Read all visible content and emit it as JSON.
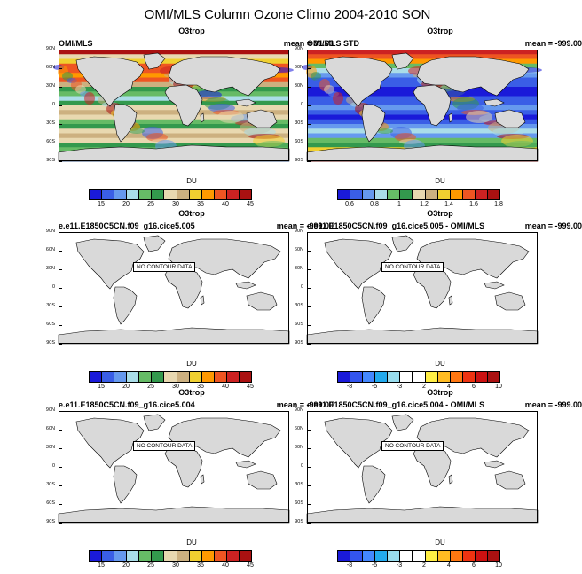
{
  "title": "OMI/MLS Column Ozone Climo 2004-2010 SON",
  "lat_labels": [
    "90N",
    "60N",
    "30N",
    "0",
    "30S",
    "60S",
    "90S"
  ],
  "colorbar_unit": "DU",
  "no_contour_text": "NO CONTOUR DATA",
  "colormaps": {
    "ozone": [
      "#1a1ad9",
      "#3a5ee6",
      "#6699ee",
      "#aadde8",
      "#66bb66",
      "#33994d",
      "#e8d8b0",
      "#ccb080",
      "#f0d030",
      "#ff9900",
      "#ee5522",
      "#cc2222",
      "#aa1111"
    ],
    "std": [
      "#1a1ad9",
      "#3a5ee6",
      "#6699ee",
      "#aadde8",
      "#66bb66",
      "#33994d",
      "#e8d8b0",
      "#ccb080",
      "#f0d030",
      "#ff9900",
      "#ee5522",
      "#cc2222",
      "#aa1111"
    ],
    "diff": [
      "#1a1ad9",
      "#3355ee",
      "#4488ff",
      "#22aaee",
      "#99ddee",
      "#ffffff",
      "#ffffff",
      "#ffee44",
      "#ffbb22",
      "#ff7711",
      "#ee3311",
      "#cc1111",
      "#aa1111"
    ]
  },
  "panels": [
    {
      "title": "O3trop",
      "left": "OMI/MLS",
      "right": "mean =  31.63",
      "colormap": "ozone",
      "labels": [
        "15",
        "20",
        "25",
        "30",
        "35",
        "40",
        "45"
      ],
      "filled": true
    },
    {
      "title": "O3trop",
      "left": "OMI/MLS STD",
      "right": "mean = -999.00",
      "colormap": "std",
      "labels": [
        "0.6",
        "0.8",
        "1",
        "1.2",
        "1.4",
        "1.6",
        "1.8"
      ],
      "filled": true
    },
    {
      "title": "O3trop",
      "left": "e.e11.E1850C5CN.f09_g16.cice5.005",
      "right": "mean = -999.00",
      "colormap": "ozone",
      "labels": [
        "15",
        "20",
        "25",
        "30",
        "35",
        "40",
        "45"
      ],
      "filled": false
    },
    {
      "title": "O3trop",
      "left": "e.e11.E1850C5CN.f09_g16.cice5.005 - OMI/MLS",
      "right": "mean = -999.00",
      "colormap": "diff",
      "labels": [
        "-8",
        "-5",
        "-3",
        "2",
        "4",
        "6",
        "10"
      ],
      "filled": false
    },
    {
      "title": "O3trop",
      "left": "e.e11.E1850C5CN.f09_g16.cice5.004",
      "right": "mean = -999.00",
      "colormap": "ozone",
      "labels": [
        "15",
        "20",
        "25",
        "30",
        "35",
        "40",
        "45"
      ],
      "filled": false
    },
    {
      "title": "O3trop",
      "left": "e.e11.E1850C5CN.f09_g16.cice5.004 - OMI/MLS",
      "right": "mean = -999.00",
      "colormap": "diff",
      "labels": [
        "-8",
        "-5",
        "-3",
        "2",
        "4",
        "6",
        "10"
      ],
      "filled": false
    }
  ]
}
